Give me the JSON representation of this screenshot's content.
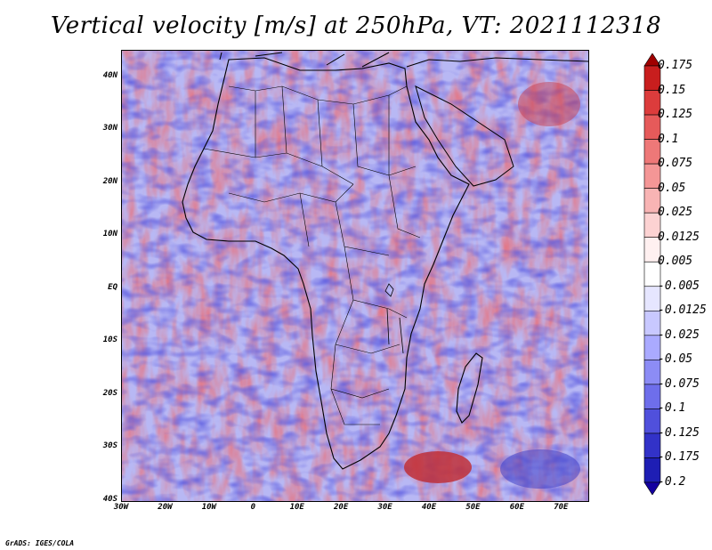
{
  "title": "Vertical velocity [m/s] at 250hPa, VT: 2021112318",
  "credit": "GrADS: IGES/COLA",
  "map": {
    "lon_range": [
      -30,
      76
    ],
    "lat_range": [
      -40,
      45
    ],
    "lat_ticks": [
      {
        "value": 40,
        "label": "40N"
      },
      {
        "value": 30,
        "label": "30N"
      },
      {
        "value": 20,
        "label": "20N"
      },
      {
        "value": 10,
        "label": "10N"
      },
      {
        "value": 0,
        "label": "EQ"
      },
      {
        "value": -10,
        "label": "10S"
      },
      {
        "value": -20,
        "label": "20S"
      },
      {
        "value": -30,
        "label": "30S"
      },
      {
        "value": -40,
        "label": "40S"
      }
    ],
    "lon_ticks": [
      {
        "value": -30,
        "label": "30W"
      },
      {
        "value": -20,
        "label": "20W"
      },
      {
        "value": -10,
        "label": "10W"
      },
      {
        "value": 0,
        "label": "0"
      },
      {
        "value": 10,
        "label": "10E"
      },
      {
        "value": 20,
        "label": "20E"
      },
      {
        "value": 30,
        "label": "30E"
      },
      {
        "value": 40,
        "label": "40E"
      },
      {
        "value": 50,
        "label": "50E"
      },
      {
        "value": 60,
        "label": "60E"
      },
      {
        "value": 70,
        "label": "70E"
      }
    ]
  },
  "colorbar": {
    "labels": [
      "0.175",
      "0.15",
      "0.125",
      "0.1",
      "0.075",
      "0.05",
      "0.025",
      "0.0125",
      "0.005",
      "-0.005",
      "-0.0125",
      "-0.025",
      "-0.05",
      "-0.075",
      "-0.1",
      "-0.125",
      "-0.175",
      "-0.2"
    ],
    "colors": [
      "#a00000",
      "#c81e1e",
      "#dc3c3c",
      "#e65a5a",
      "#ee7878",
      "#f49696",
      "#f8b4b4",
      "#fcd2d2",
      "#fff0f0",
      "#ffffff",
      "#e6e6ff",
      "#c8c8ff",
      "#aaaaff",
      "#8c8cf5",
      "#6e6eeb",
      "#5050dc",
      "#3232c8",
      "#1e1eb4",
      "#1400a0"
    ]
  }
}
